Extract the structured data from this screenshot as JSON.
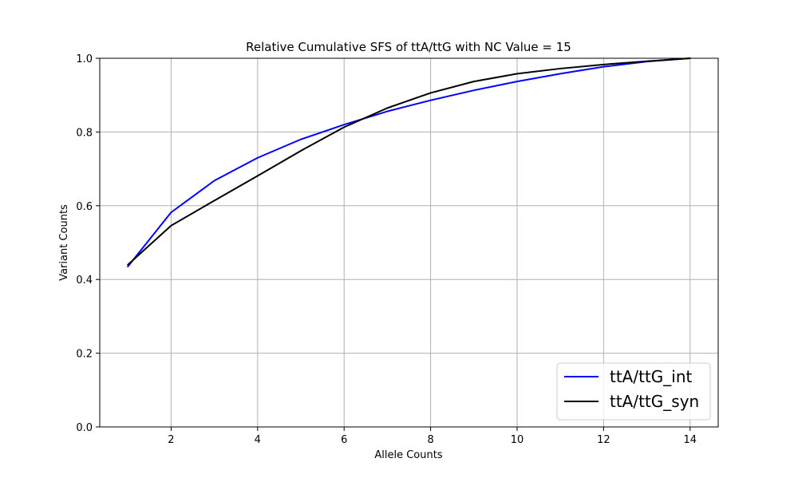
{
  "chart_data": {
    "type": "line",
    "title": "Relative Cumulative SFS of ttA/ttG with NC Value = 15",
    "xlabel": "Allele Counts",
    "ylabel": "Variant Counts",
    "xlim": [
      0.35,
      14.65
    ],
    "ylim": [
      0.0,
      1.0
    ],
    "x_ticks": [
      2,
      4,
      6,
      8,
      10,
      12,
      14
    ],
    "y_ticks": [
      0.0,
      0.2,
      0.4,
      0.6,
      0.8,
      1.0
    ],
    "x_tick_labels": [
      "2",
      "4",
      "6",
      "8",
      "10",
      "12",
      "14"
    ],
    "y_tick_labels": [
      "0.0",
      "0.2",
      "0.4",
      "0.6",
      "0.8",
      "1.0"
    ],
    "grid": true,
    "legend_position": "bottom-right",
    "x": [
      1,
      2,
      3,
      4,
      5,
      6,
      7,
      8,
      9,
      10,
      11,
      12,
      13,
      14
    ],
    "series": [
      {
        "name": "ttA/ttG_int",
        "color": "#0000ff",
        "values": [
          0.435,
          0.582,
          0.668,
          0.73,
          0.78,
          0.82,
          0.856,
          0.886,
          0.913,
          0.937,
          0.958,
          0.977,
          0.991,
          1.0
        ]
      },
      {
        "name": "ttA/ttG_syn",
        "color": "#000000",
        "values": [
          0.44,
          0.546,
          0.614,
          0.681,
          0.749,
          0.813,
          0.865,
          0.906,
          0.937,
          0.958,
          0.972,
          0.983,
          0.992,
          1.0
        ]
      }
    ]
  }
}
